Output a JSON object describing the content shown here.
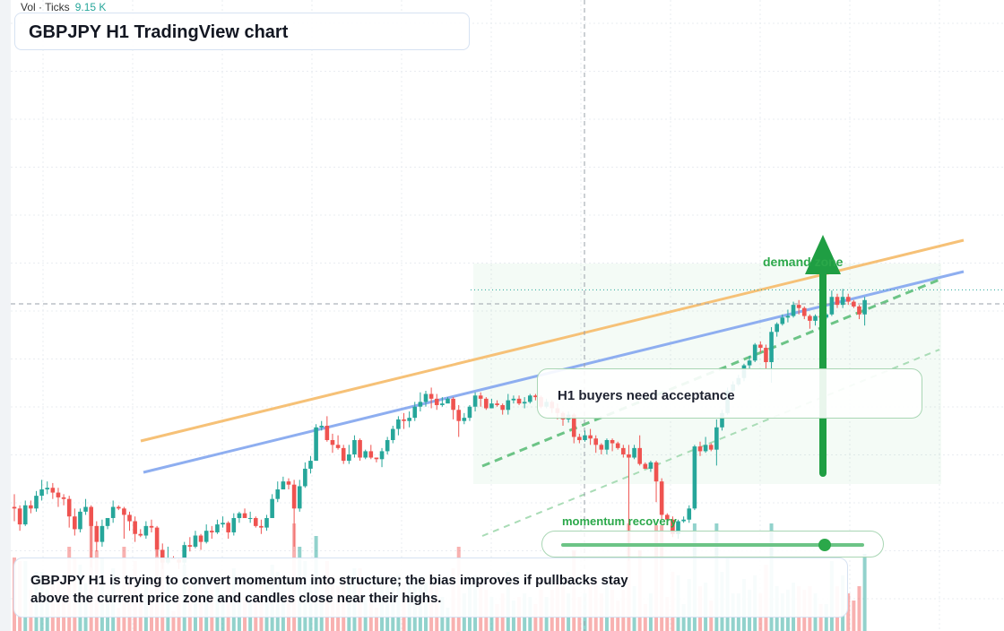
{
  "header": {
    "vol_label": "Vol · Ticks",
    "vol_value": "9.15 K"
  },
  "title": "GBPJPY H1 TradingView chart",
  "annotations": {
    "note": "H1 buyers need acceptance",
    "demand_label": "demand zone",
    "momentum_label": "momentum recovery",
    "momentum_level": 0.87
  },
  "summary": "GBPJPY H1 is trying to convert momentum into structure; the bias improves if pullbacks stay above the current price zone and candles close near their highs.",
  "colors": {
    "up": "#26a69a",
    "down": "#ef5350",
    "accent": "#2ba84a",
    "orange_line": "#f6c177",
    "blue_line": "#8eaef0"
  },
  "icons": [
    "up-arrow-icon"
  ],
  "chart_data": {
    "type": "candlestick",
    "title": "GBPJPY H1 TradingView chart",
    "series": [
      {
        "name": "GBPJPY",
        "values": [
          [
            39.0,
            38.5,
            43.0,
            34.5
          ],
          [
            38.5,
            33.5,
            39.5,
            31.5
          ],
          [
            33.5,
            39.5,
            41.0,
            33.0
          ],
          [
            39.5,
            38.5,
            41.0,
            37.0
          ],
          [
            38.5,
            42.5,
            44.0,
            37.5
          ],
          [
            42.5,
            44.5,
            47.5,
            41.0
          ],
          [
            44.5,
            45.0,
            47.0,
            43.0
          ],
          [
            45.0,
            43.5,
            46.5,
            41.5
          ],
          [
            43.5,
            42.0,
            45.0,
            39.0
          ],
          [
            42.0,
            41.5,
            43.0,
            39.5
          ],
          [
            41.5,
            36.0,
            42.5,
            32.5
          ],
          [
            36.0,
            32.0,
            38.5,
            30.0
          ],
          [
            32.0,
            37.5,
            38.5,
            31.0
          ],
          [
            37.5,
            39.0,
            41.5,
            36.5
          ],
          [
            39.0,
            33.0,
            39.5,
            20.0
          ],
          [
            33.0,
            28.0,
            34.5,
            25.0
          ],
          [
            28.0,
            33.0,
            35.0,
            26.5
          ],
          [
            33.0,
            35.5,
            35.5,
            32.0
          ],
          [
            35.5,
            39.0,
            41.0,
            34.0
          ],
          [
            39.0,
            38.5,
            39.5,
            38.0
          ],
          [
            38.5,
            36.5,
            39.0,
            29.0
          ],
          [
            36.5,
            34.5,
            37.5,
            31.5
          ],
          [
            34.5,
            30.5,
            36.0,
            28.0
          ],
          [
            30.5,
            30.0,
            32.0,
            29.5
          ],
          [
            30.0,
            33.0,
            34.5,
            29.0
          ],
          [
            33.0,
            32.5,
            35.0,
            31.0
          ],
          [
            32.5,
            25.5,
            33.0,
            23.5
          ],
          [
            25.5,
            21.5,
            27.5,
            19.5
          ],
          [
            21.5,
            23.0,
            26.5,
            21.0
          ],
          [
            23.0,
            22.5,
            23.5,
            22.5
          ],
          [
            22.5,
            21.5,
            23.0,
            19.5
          ],
          [
            21.5,
            27.0,
            28.0,
            20.5
          ],
          [
            27.0,
            26.5,
            29.5,
            25.0
          ],
          [
            26.5,
            30.0,
            31.5,
            26.0
          ],
          [
            30.0,
            28.0,
            30.5,
            25.5
          ],
          [
            28.0,
            31.5,
            33.5,
            27.5
          ],
          [
            31.5,
            31.0,
            33.0,
            29.0
          ],
          [
            31.0,
            33.5,
            35.0,
            30.5
          ],
          [
            33.5,
            34.0,
            36.0,
            32.5
          ],
          [
            34.0,
            31.0,
            34.5,
            29.0
          ],
          [
            31.0,
            35.5,
            37.0,
            30.0
          ],
          [
            35.5,
            37.0,
            37.5,
            34.0
          ],
          [
            37.0,
            35.5,
            38.5,
            35.5
          ],
          [
            35.5,
            35.5,
            37.5,
            34.0
          ],
          [
            35.5,
            33.0,
            36.0,
            32.5
          ],
          [
            33.0,
            32.5,
            35.0,
            30.5
          ],
          [
            32.5,
            35.5,
            36.5,
            31.5
          ],
          [
            35.5,
            41.5,
            43.0,
            35.5
          ],
          [
            41.5,
            44.5,
            47.0,
            40.5
          ],
          [
            44.5,
            47.0,
            48.5,
            45.0
          ],
          [
            47.0,
            46.0,
            48.0,
            44.5
          ],
          [
            46.0,
            38.5,
            47.5,
            26.5
          ],
          [
            38.5,
            45.5,
            47.5,
            37.5
          ],
          [
            45.5,
            51.0,
            53.0,
            45.0
          ],
          [
            51.0,
            53.5,
            55.0,
            49.5
          ],
          [
            53.5,
            64.0,
            65.0,
            53.5
          ],
          [
            64.0,
            64.5,
            66.0,
            63.0
          ],
          [
            64.5,
            60.0,
            67.5,
            59.5
          ],
          [
            60.0,
            58.5,
            62.0,
            56.0
          ],
          [
            58.5,
            57.5,
            61.5,
            57.0
          ],
          [
            57.5,
            53.5,
            58.5,
            52.5
          ],
          [
            53.5,
            55.5,
            58.5,
            52.5
          ],
          [
            55.5,
            60.0,
            61.5,
            54.5
          ],
          [
            60.0,
            54.5,
            60.5,
            53.5
          ],
          [
            54.5,
            56.5,
            57.0,
            54.0
          ],
          [
            56.5,
            54.5,
            58.5,
            54.0
          ],
          [
            54.5,
            54.0,
            54.5,
            53.0
          ],
          [
            54.0,
            56.5,
            57.5,
            51.5
          ],
          [
            56.5,
            60.0,
            61.0,
            55.5
          ],
          [
            60.0,
            63.5,
            64.5,
            59.0
          ],
          [
            63.5,
            66.5,
            67.5,
            61.5
          ],
          [
            66.5,
            66.0,
            68.5,
            63.5
          ],
          [
            66.0,
            67.0,
            69.0,
            64.0
          ],
          [
            67.0,
            70.5,
            72.0,
            66.0
          ],
          [
            70.5,
            72.0,
            75.0,
            69.0
          ],
          [
            72.0,
            74.5,
            75.5,
            70.5
          ],
          [
            74.5,
            73.0,
            76.5,
            70.0
          ],
          [
            73.0,
            71.0,
            74.5,
            69.5
          ],
          [
            71.0,
            71.5,
            73.5,
            70.5
          ],
          [
            71.5,
            73.0,
            73.5,
            72.0
          ],
          [
            73.0,
            69.5,
            73.5,
            66.5
          ],
          [
            69.5,
            66.0,
            71.0,
            61.0
          ],
          [
            66.0,
            67.0,
            68.5,
            65.0
          ],
          [
            67.0,
            70.5,
            71.0,
            66.0
          ],
          [
            70.5,
            74.0,
            75.0,
            69.0
          ],
          [
            74.0,
            73.0,
            75.0,
            70.5
          ],
          [
            73.0,
            70.0,
            73.5,
            69.5
          ],
          [
            70.0,
            71.5,
            73.0,
            70.0
          ],
          [
            71.5,
            71.0,
            72.5,
            70.5
          ],
          [
            71.0,
            69.5,
            71.5,
            68.0
          ],
          [
            69.5,
            72.5,
            74.5,
            68.0
          ],
          [
            72.5,
            73.0,
            74.0,
            71.5
          ],
          [
            73.0,
            71.5,
            74.0,
            71.0
          ],
          [
            71.5,
            72.0,
            73.5,
            70.0
          ],
          [
            72.0,
            74.0,
            74.5,
            71.5
          ],
          [
            74.0,
            73.5,
            74.5,
            72.5
          ],
          [
            73.5,
            70.5,
            74.0,
            70.0
          ],
          [
            70.5,
            72.0,
            73.0,
            70.0
          ],
          [
            72.0,
            70.0,
            72.5,
            68.5
          ],
          [
            70.0,
            68.5,
            71.5,
            66.5
          ],
          [
            68.5,
            66.5,
            69.0,
            64.5
          ],
          [
            66.5,
            68.0,
            69.0,
            65.5
          ],
          [
            68.0,
            61.0,
            68.5,
            59.0
          ],
          [
            61.0,
            60.0,
            62.0,
            59.0
          ],
          [
            60.0,
            61.5,
            63.0,
            59.5
          ],
          [
            61.5,
            60.5,
            63.5,
            58.5
          ],
          [
            60.5,
            58.5,
            61.5,
            56.0
          ],
          [
            58.5,
            57.0,
            59.0,
            55.5
          ],
          [
            57.0,
            60.0,
            60.5,
            55.5
          ],
          [
            60.0,
            59.0,
            60.5,
            56.5
          ],
          [
            59.0,
            57.5,
            59.5,
            57.0
          ],
          [
            57.5,
            55.5,
            58.5,
            54.5
          ],
          [
            55.5,
            54.5,
            58.5,
            22.0
          ],
          [
            54.5,
            57.5,
            58.5,
            54.0
          ],
          [
            57.5,
            52.5,
            61.5,
            52.0
          ],
          [
            52.5,
            51.0,
            53.0,
            51.0
          ],
          [
            51.0,
            53.0,
            53.5,
            50.0
          ],
          [
            53.0,
            47.0,
            53.5,
            40.5
          ],
          [
            47.0,
            36.5,
            48.0,
            35.0
          ],
          [
            36.5,
            35.0,
            37.0,
            34.0
          ],
          [
            35.0,
            30.5,
            36.0,
            29.5
          ],
          [
            30.5,
            34.5,
            35.0,
            29.0
          ],
          [
            34.5,
            35.0,
            36.0,
            34.0
          ],
          [
            35.0,
            38.5,
            39.5,
            34.0
          ],
          [
            38.5,
            58.0,
            58.5,
            38.0
          ],
          [
            58.0,
            56.5,
            59.5,
            55.0
          ],
          [
            56.5,
            58.5,
            61.0,
            56.0
          ],
          [
            58.5,
            57.0,
            59.0,
            56.5
          ],
          [
            57.0,
            64.0,
            66.5,
            52.0
          ],
          [
            64.0,
            68.5,
            69.5,
            63.0
          ],
          [
            68.5,
            75.5,
            76.5,
            68.0
          ],
          [
            75.5,
            77.5,
            78.5,
            75.0
          ],
          [
            77.5,
            79.5,
            80.5,
            77.0
          ],
          [
            79.5,
            83.5,
            84.0,
            78.5
          ],
          [
            83.5,
            85.0,
            86.5,
            82.5
          ],
          [
            85.0,
            90.0,
            90.5,
            84.5
          ],
          [
            90.0,
            89.0,
            91.0,
            87.5
          ],
          [
            89.0,
            84.5,
            90.0,
            82.5
          ],
          [
            84.5,
            94.0,
            95.5,
            78.0
          ],
          [
            94.0,
            96.5,
            97.0,
            92.5
          ],
          [
            96.5,
            98.5,
            99.5,
            96.0
          ],
          [
            98.5,
            99.0,
            101.0,
            97.0
          ],
          [
            99.0,
            102.5,
            103.5,
            98.5
          ],
          [
            102.5,
            101.5,
            104.0,
            99.5
          ],
          [
            101.5,
            99.0,
            102.0,
            98.0
          ],
          [
            99.0,
            97.5,
            99.5,
            95.0
          ],
          [
            97.5,
            99.0,
            99.5,
            96.0
          ],
          [
            99.0,
            98.5,
            99.5,
            97.5
          ],
          [
            98.5,
            99.5,
            100.0,
            98.0
          ],
          [
            99.5,
            105.0,
            107.0,
            99.0
          ],
          [
            105.0,
            102.5,
            106.0,
            101.5
          ],
          [
            102.5,
            105.0,
            107.5,
            101.5
          ],
          [
            105.0,
            103.5,
            106.0,
            102.5
          ],
          [
            103.5,
            102.0,
            104.0,
            101.5
          ],
          [
            102.0,
            99.5,
            102.5,
            98.0
          ],
          [
            99.5,
            104.0,
            105.0,
            96.0
          ]
        ]
      }
    ]
  }
}
